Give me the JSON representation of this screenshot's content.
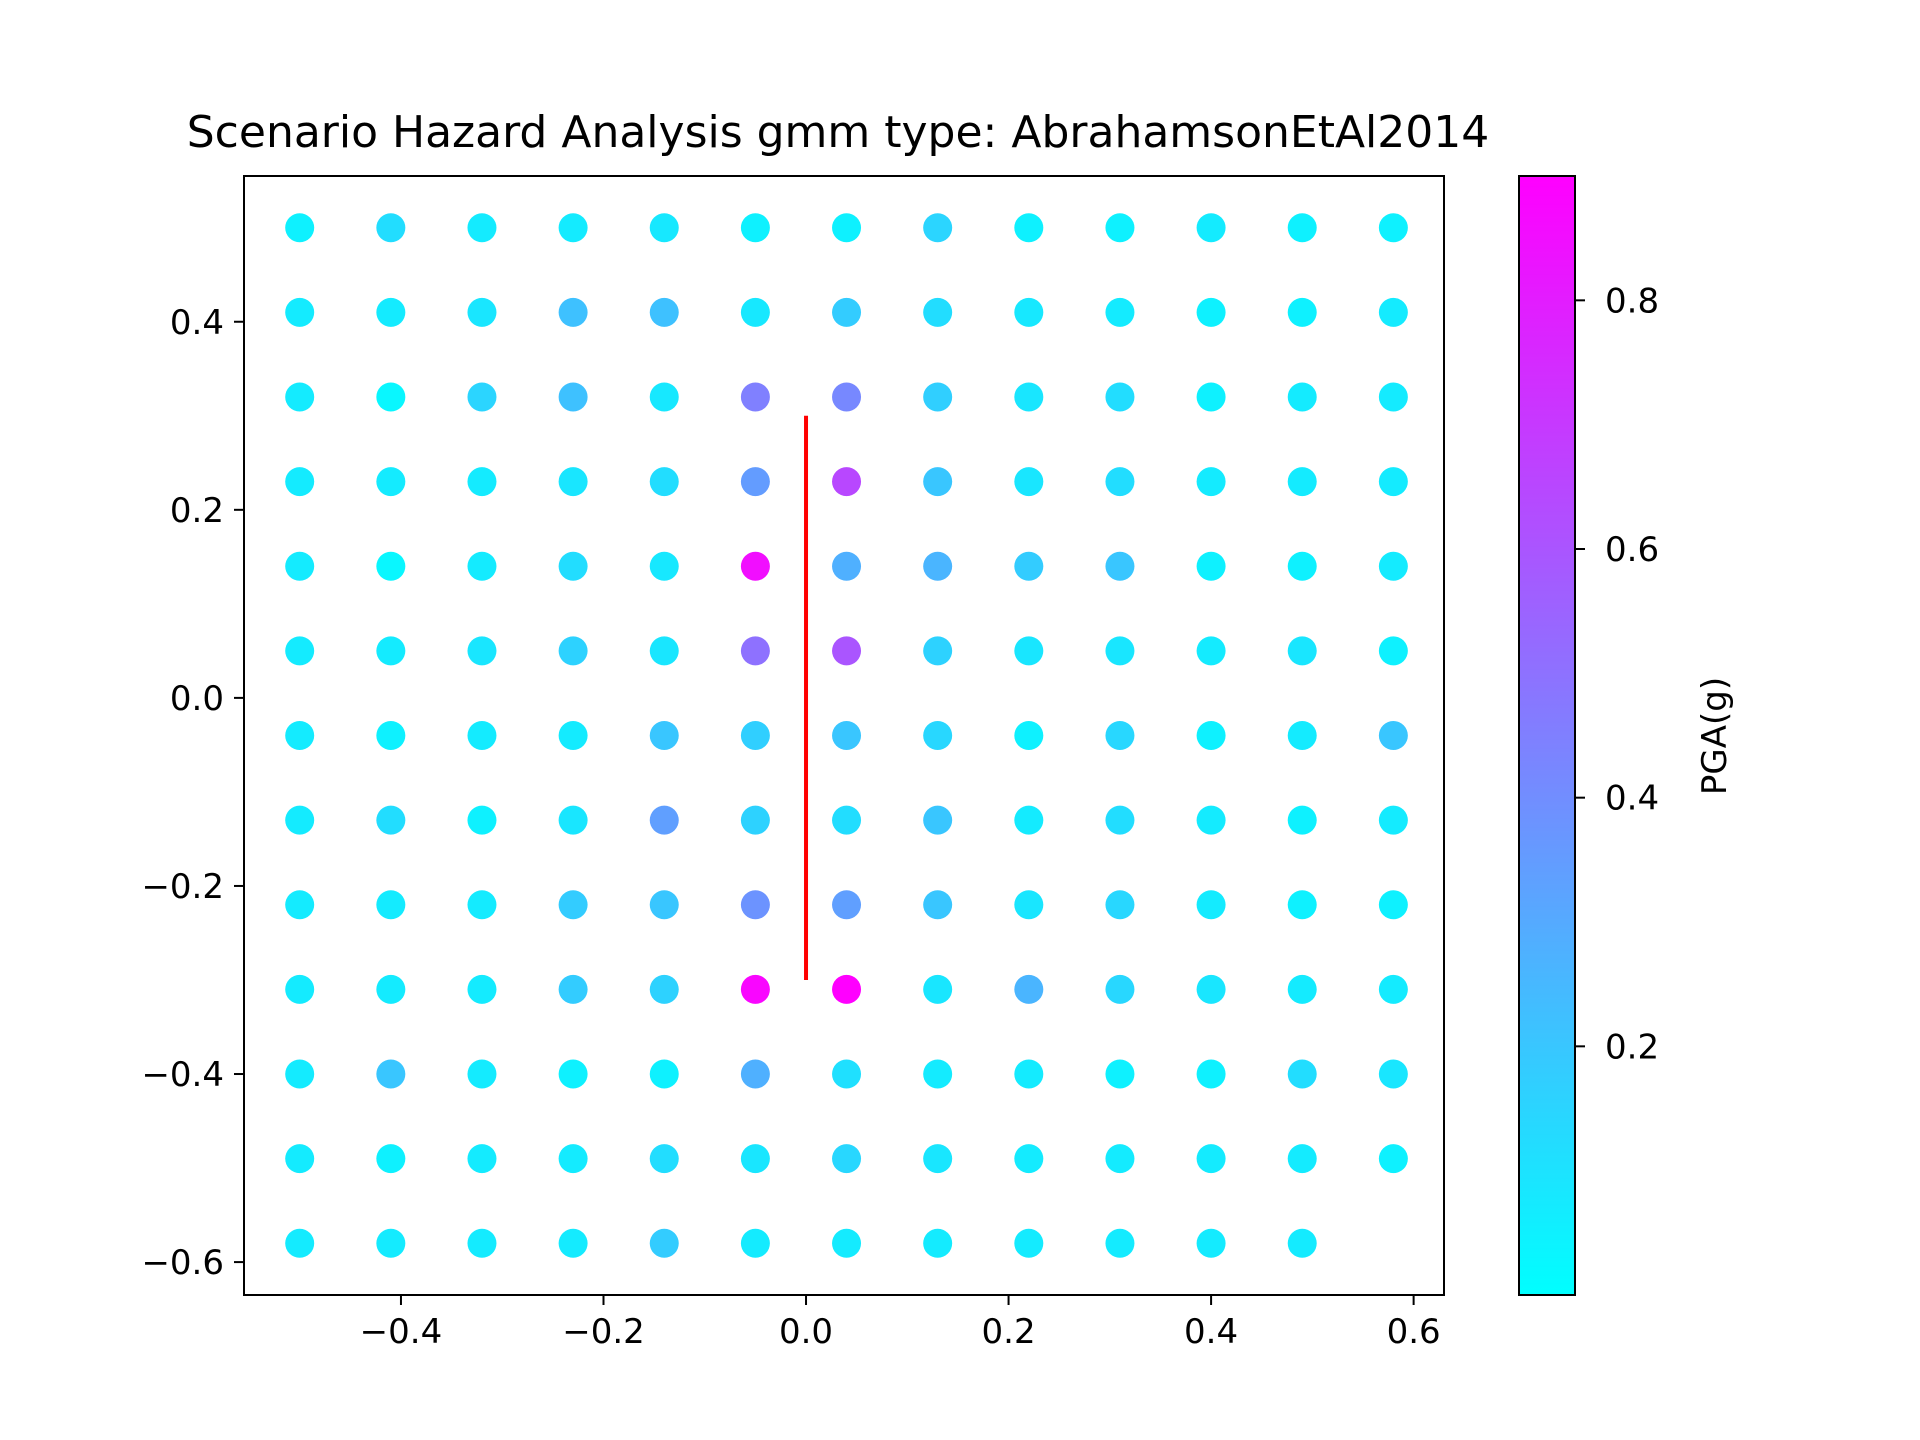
{
  "chart_data": {
    "type": "scatter",
    "title": "Scenario Hazard Analysis gmm type: AbrahamsonEtAl2014",
    "xlim": [
      -0.555,
      0.63
    ],
    "ylim": [
      -0.635,
      0.555
    ],
    "x_ticks": [
      {
        "value": -0.4,
        "label": "−0.4"
      },
      {
        "value": -0.2,
        "label": "−0.2"
      },
      {
        "value": 0.0,
        "label": "0.0"
      },
      {
        "value": 0.2,
        "label": "0.2"
      },
      {
        "value": 0.4,
        "label": "0.4"
      },
      {
        "value": 0.6,
        "label": "0.6"
      }
    ],
    "y_ticks": [
      {
        "value": 0.4,
        "label": "0.4"
      },
      {
        "value": 0.2,
        "label": "0.2"
      },
      {
        "value": 0.0,
        "label": "0.0"
      },
      {
        "value": -0.2,
        "label": "−0.2"
      },
      {
        "value": -0.4,
        "label": "−0.4"
      },
      {
        "value": -0.6,
        "label": "−0.6"
      }
    ],
    "grid": false,
    "x": [
      -0.5,
      -0.41,
      -0.32,
      -0.23,
      -0.14,
      -0.05,
      0.04,
      0.13,
      0.22,
      0.31,
      0.4,
      0.49,
      0.58
    ],
    "y": [
      0.5,
      0.41,
      0.32,
      0.23,
      0.14,
      0.05,
      -0.04,
      -0.13,
      -0.22,
      -0.31,
      -0.4,
      -0.49,
      -0.58
    ],
    "pga_grid": [
      [
        0.05,
        0.12,
        0.07,
        0.07,
        0.08,
        0.05,
        0.05,
        0.15,
        0.05,
        0.05,
        0.07,
        0.05,
        0.05
      ],
      [
        0.07,
        0.07,
        0.09,
        0.22,
        0.22,
        0.08,
        0.18,
        0.12,
        0.08,
        0.07,
        0.05,
        0.05,
        0.07
      ],
      [
        0.07,
        0.03,
        0.15,
        0.22,
        0.08,
        0.45,
        0.42,
        0.17,
        0.09,
        0.12,
        0.05,
        0.07,
        0.07
      ],
      [
        0.07,
        0.07,
        0.07,
        0.09,
        0.12,
        0.35,
        0.65,
        0.2,
        0.09,
        0.12,
        0.07,
        0.07,
        0.07
      ],
      [
        0.07,
        0.03,
        0.07,
        0.12,
        0.08,
        0.85,
        0.28,
        0.26,
        0.18,
        0.2,
        0.05,
        0.05,
        0.07
      ],
      [
        0.07,
        0.07,
        0.09,
        0.16,
        0.09,
        0.5,
        0.6,
        0.16,
        0.09,
        0.09,
        0.07,
        0.09,
        0.05
      ],
      [
        0.07,
        0.05,
        0.07,
        0.07,
        0.2,
        0.17,
        0.2,
        0.14,
        0.05,
        0.14,
        0.05,
        0.07,
        0.2
      ],
      [
        0.07,
        0.12,
        0.05,
        0.09,
        0.34,
        0.16,
        0.12,
        0.2,
        0.07,
        0.12,
        0.07,
        0.05,
        0.07
      ],
      [
        0.07,
        0.07,
        0.07,
        0.18,
        0.2,
        0.38,
        0.34,
        0.2,
        0.09,
        0.14,
        0.07,
        0.05,
        0.05
      ],
      [
        0.07,
        0.07,
        0.07,
        0.18,
        0.16,
        0.88,
        0.9,
        0.09,
        0.26,
        0.14,
        0.09,
        0.07,
        0.07
      ],
      [
        0.07,
        0.2,
        0.07,
        0.05,
        0.05,
        0.28,
        0.11,
        0.07,
        0.07,
        0.05,
        0.05,
        0.12,
        0.09
      ],
      [
        0.07,
        0.05,
        0.07,
        0.07,
        0.12,
        0.09,
        0.14,
        0.09,
        0.07,
        0.07,
        0.07,
        0.07,
        0.05
      ],
      [
        0.07,
        0.07,
        0.07,
        0.07,
        0.18,
        0.07,
        0.07,
        0.07,
        0.07,
        0.07,
        0.07,
        0.07,
        null
      ]
    ],
    "rupture_line": {
      "x": [
        0.0,
        0.0
      ],
      "y": [
        -0.3,
        0.3
      ],
      "color": "#ff0000"
    },
    "colorbar": {
      "label": "PGA(g)",
      "colormap": "cool",
      "color_low": "#00ffff",
      "color_high": "#ff00ff",
      "vmin": 0.0,
      "vmax": 0.9,
      "ticks": [
        {
          "value": 0.2,
          "label": "0.2"
        },
        {
          "value": 0.4,
          "label": "0.4"
        },
        {
          "value": 0.6,
          "label": "0.6"
        },
        {
          "value": 0.8,
          "label": "0.8"
        }
      ]
    }
  }
}
